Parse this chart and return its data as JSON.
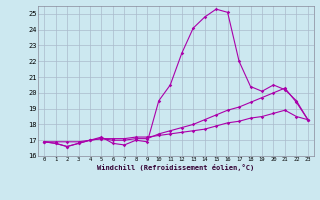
{
  "xlabel": "Windchill (Refroidissement éolien,°C)",
  "bg_color": "#cce8f0",
  "line_color": "#aa00aa",
  "x_hours": [
    0,
    1,
    2,
    3,
    4,
    5,
    6,
    7,
    8,
    9,
    10,
    11,
    12,
    13,
    14,
    15,
    16,
    17,
    18,
    19,
    20,
    21,
    22,
    23
  ],
  "series1": [
    16.9,
    16.8,
    16.6,
    16.8,
    17.0,
    17.2,
    16.8,
    16.7,
    17.0,
    16.9,
    19.5,
    20.5,
    22.5,
    24.1,
    24.8,
    25.3,
    25.1,
    22.0,
    20.4,
    20.1,
    20.5,
    20.2,
    19.5,
    18.3
  ],
  "series2": [
    16.9,
    16.8,
    16.6,
    16.8,
    17.0,
    17.1,
    17.0,
    17.0,
    17.1,
    17.1,
    17.4,
    17.6,
    17.8,
    18.0,
    18.3,
    18.6,
    18.9,
    19.1,
    19.4,
    19.7,
    20.0,
    20.3,
    19.4,
    18.3
  ],
  "series3": [
    16.9,
    16.9,
    16.9,
    16.9,
    17.0,
    17.1,
    17.1,
    17.1,
    17.2,
    17.2,
    17.3,
    17.4,
    17.5,
    17.6,
    17.7,
    17.9,
    18.1,
    18.2,
    18.4,
    18.5,
    18.7,
    18.9,
    18.5,
    18.3
  ],
  "ylim": [
    16,
    25.5
  ],
  "yticks": [
    16,
    17,
    18,
    19,
    20,
    21,
    22,
    23,
    24,
    25
  ],
  "grid_color": "#aabbcc",
  "markersize": 1.8,
  "linewidth": 0.8
}
